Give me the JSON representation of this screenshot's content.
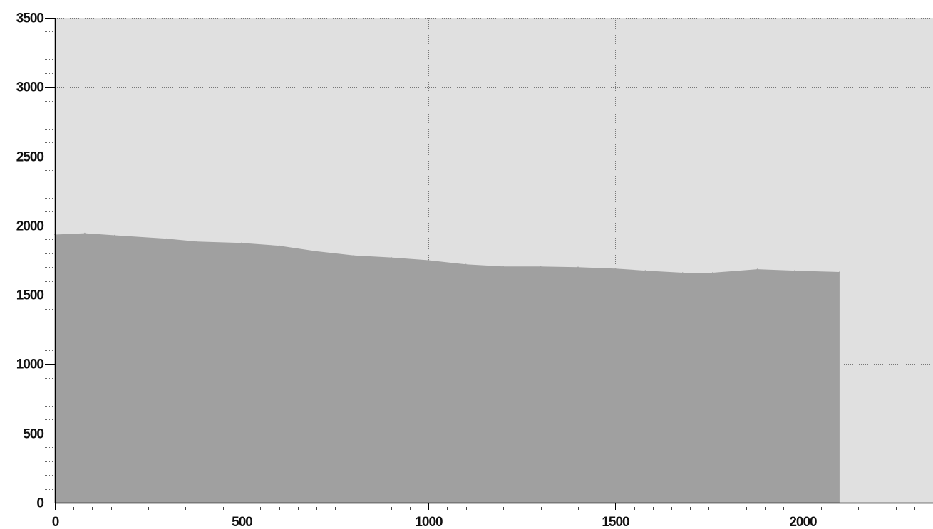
{
  "chart_data": {
    "type": "area",
    "title": "",
    "xlabel": "",
    "ylabel": "",
    "xlim": [
      0,
      2350
    ],
    "ylim": [
      0,
      3500
    ],
    "x_ticks": [
      0,
      500,
      1000,
      1500,
      2000
    ],
    "y_ticks": [
      0,
      500,
      1000,
      1500,
      2000,
      2500,
      3000,
      3500
    ],
    "x_tick_labels": [
      "0",
      "500",
      "1000",
      "1500",
      "2000"
    ],
    "y_tick_labels": [
      "0",
      "500",
      "1000",
      "1500",
      "2000",
      "2500",
      "3000",
      "3500"
    ],
    "grid": true,
    "series": [
      {
        "x": [
          0,
          80,
          160,
          300,
          380,
          500,
          600,
          700,
          800,
          900,
          1000,
          1100,
          1200,
          1300,
          1400,
          1500,
          1580,
          1680,
          1760,
          1880,
          1980,
          2100
        ],
        "y": [
          1935,
          1945,
          1930,
          1905,
          1885,
          1875,
          1855,
          1815,
          1785,
          1770,
          1750,
          1720,
          1705,
          1705,
          1700,
          1690,
          1675,
          1660,
          1660,
          1685,
          1675,
          1665
        ],
        "fill_color": "#a0a0a0"
      }
    ],
    "background_color": "#e0e0e0",
    "grid_color": "#777777"
  }
}
